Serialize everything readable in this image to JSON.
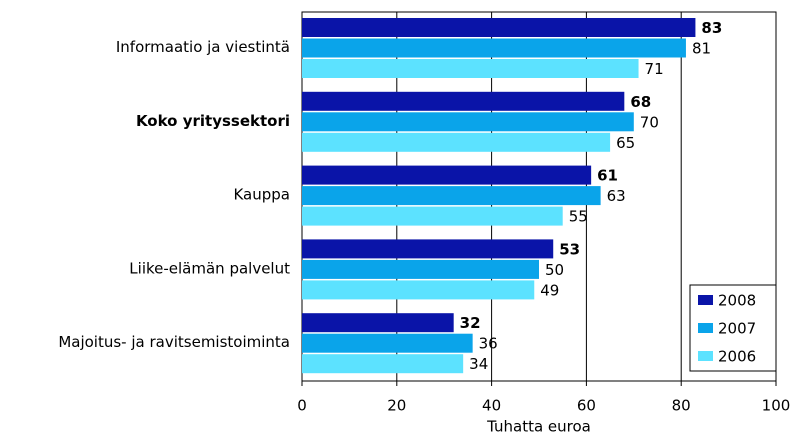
{
  "chart_data": {
    "type": "bar",
    "orientation": "horizontal",
    "x_label": "Tuhatta euroa",
    "categories": [
      "Informaatio ja viestintä",
      "Koko yrityssektori",
      "Kauppa",
      "Liike-elämän palvelut",
      "Majoitus- ja ravitsemistoiminta"
    ],
    "series": [
      {
        "name": "2008",
        "color": "#0a14a8",
        "values": [
          83,
          68,
          61,
          53,
          32
        ]
      },
      {
        "name": "2007",
        "color": "#0aa4ea",
        "values": [
          81,
          70,
          63,
          50,
          36
        ]
      },
      {
        "name": "2006",
        "color": "#5ce2ff",
        "values": [
          71,
          65,
          55,
          49,
          34
        ]
      }
    ],
    "xlim": [
      0,
      100
    ],
    "xticks": [
      0,
      20,
      40,
      60,
      80,
      100
    ],
    "grid": true,
    "legend": "lower right"
  }
}
